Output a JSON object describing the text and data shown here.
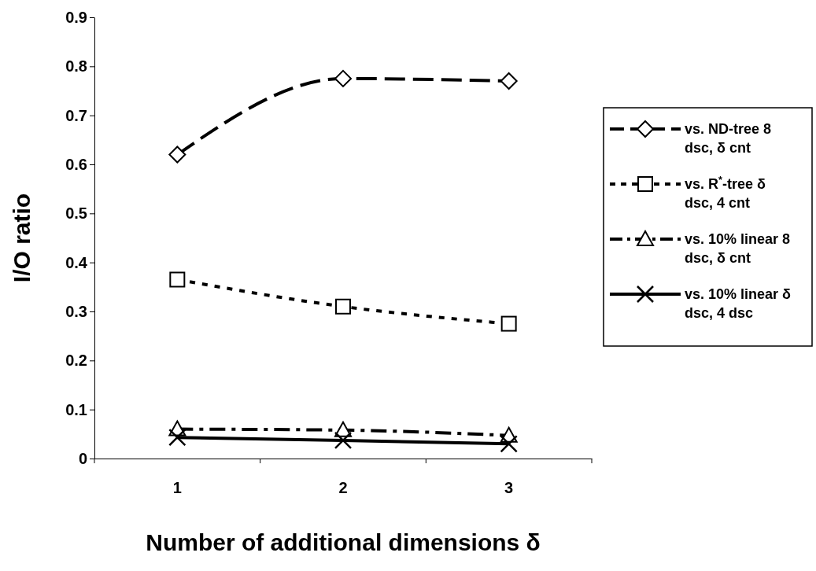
{
  "chart_data": {
    "type": "line",
    "xlabel": "Number of additional dimensions δ",
    "ylabel": "I/O ratio",
    "categories": [
      "1",
      "2",
      "3"
    ],
    "ylim": [
      0,
      0.9
    ],
    "yticks": [
      0,
      0.1,
      0.2,
      0.3,
      0.4,
      0.5,
      0.6,
      0.7,
      0.8,
      0.9
    ],
    "grid": false,
    "legend": "right",
    "series": [
      {
        "name": "vs. ND-tree 8 dsc, δ cnt",
        "color": "#000000",
        "values": [
          0.62,
          0.775,
          0.77
        ],
        "marker": "diamond",
        "line_style": "dashed"
      },
      {
        "name": "vs. R$^{*}$-tree δ dsc, 4 cnt",
        "color": "#000000",
        "values": [
          0.365,
          0.31,
          0.275
        ],
        "marker": "square",
        "line_style": "dotted"
      },
      {
        "name": "vs. 10% linear 8 dsc, δ cnt",
        "color": "#000000",
        "values": [
          0.06,
          0.058,
          0.047
        ],
        "marker": "triangle",
        "line_style": "dashdot"
      },
      {
        "name": "vs. 10% linear δ dsc, 4 dsc",
        "color": "#000000",
        "values": [
          0.043,
          0.037,
          0.03
        ],
        "marker": "cross",
        "line_style": "solid"
      }
    ]
  }
}
